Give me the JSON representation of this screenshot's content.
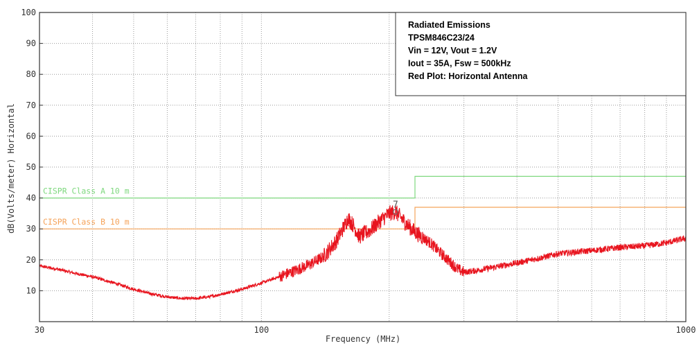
{
  "chart_data": {
    "type": "line",
    "xlabel": "Frequency (MHz)",
    "ylabel": "dB(Volts/meter) Horizontal",
    "x_scale": "log",
    "xlim": [
      30,
      1000
    ],
    "ylim": [
      0,
      100
    ],
    "x_ticks": [
      30,
      100,
      1000
    ],
    "x_tick_labels": [
      "30",
      "100",
      "1000"
    ],
    "y_ticks": [
      10,
      20,
      30,
      40,
      50,
      60,
      70,
      80,
      90,
      100
    ],
    "y_tick_labels": [
      "10",
      "20",
      "30",
      "40",
      "50",
      "60",
      "70",
      "80",
      "90",
      "100"
    ],
    "grid": true,
    "legend": {
      "placement": "top-right",
      "lines": [
        "Radiated Emissions",
        "TPSM846C23/24",
        "Vin = 12V, Vout = 1.2V",
        "Iout = 35A, Fsw = 500kHz",
        "Red Plot: Horizontal Antenna"
      ]
    },
    "limit_lines": [
      {
        "name": "CISPR Class A 10 m",
        "color": "#7fd87f",
        "x": [
          30,
          230,
          230,
          1000
        ],
        "y": [
          40,
          40,
          47,
          47
        ]
      },
      {
        "name": "CISPR Class B 10 m",
        "color": "#f5a35a",
        "x": [
          30,
          230,
          230,
          1000
        ],
        "y": [
          30,
          30,
          37,
          37
        ]
      }
    ],
    "series": [
      {
        "color": "#e8141e",
        "x": [
          30,
          33,
          36,
          40,
          45,
          50,
          55,
          60,
          65,
          70,
          75,
          80,
          90,
          100,
          110,
          120,
          130,
          140,
          150,
          157,
          160,
          165,
          170,
          180,
          190,
          200,
          207,
          212,
          220,
          230,
          250,
          270,
          290,
          300,
          320,
          350,
          400,
          450,
          500,
          550,
          600,
          700,
          800,
          900,
          1000
        ],
        "y": [
          18,
          17,
          15.8,
          14.5,
          12.5,
          10.5,
          9,
          8,
          7.5,
          7.5,
          8,
          8.8,
          10.5,
          12.5,
          14.5,
          16.5,
          18.5,
          21,
          26,
          31,
          33.5,
          31,
          27.5,
          29.5,
          32.5,
          35,
          35.5,
          34,
          31.5,
          29,
          25.5,
          21,
          17,
          16,
          16.5,
          17.5,
          19,
          20.5,
          22,
          22.5,
          23,
          24,
          24.5,
          25.5,
          27
        ]
      }
    ],
    "markers": [
      {
        "label": "7",
        "x": 207,
        "y": 35.5
      }
    ]
  }
}
